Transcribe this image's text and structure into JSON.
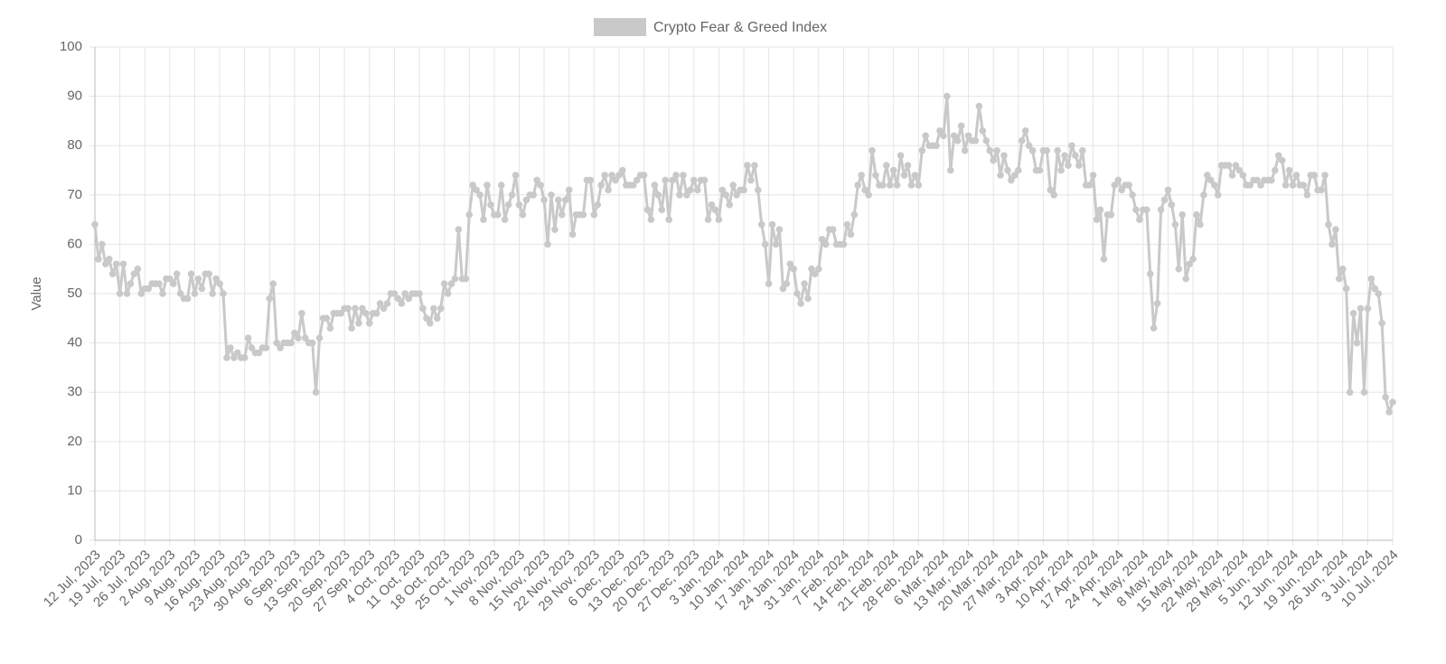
{
  "chart_data": {
    "type": "line",
    "ylabel": "Value",
    "ylim": [
      0,
      100
    ],
    "yticks": [
      0,
      10,
      20,
      30,
      40,
      50,
      60,
      70,
      80,
      90,
      100
    ],
    "grid": true,
    "legend": "top",
    "categories": [
      "12 Jul, 2023",
      null,
      null,
      null,
      null,
      null,
      null,
      "19 Jul, 2023",
      null,
      null,
      null,
      null,
      null,
      null,
      "26 Jul, 2023",
      null,
      null,
      null,
      null,
      null,
      null,
      "2 Aug, 2023",
      null,
      null,
      null,
      null,
      null,
      null,
      "9 Aug, 2023",
      null,
      null,
      null,
      null,
      null,
      null,
      "16 Aug, 2023",
      null,
      null,
      null,
      null,
      null,
      null,
      "23 Aug, 2023",
      null,
      null,
      null,
      null,
      null,
      null,
      "30 Aug, 2023",
      null,
      null,
      null,
      null,
      null,
      null,
      "6 Sep, 2023",
      null,
      null,
      null,
      null,
      null,
      null,
      "13 Sep, 2023",
      null,
      null,
      null,
      null,
      null,
      null,
      "20 Sep, 2023",
      null,
      null,
      null,
      null,
      null,
      null,
      "27 Sep, 2023",
      null,
      null,
      null,
      null,
      null,
      null,
      "4 Oct, 2023",
      null,
      null,
      null,
      null,
      null,
      null,
      "11 Oct, 2023",
      null,
      null,
      null,
      null,
      null,
      null,
      "18 Oct, 2023",
      null,
      null,
      null,
      null,
      null,
      null,
      "25 Oct, 2023",
      null,
      null,
      null,
      null,
      null,
      null,
      "1 Nov, 2023",
      null,
      null,
      null,
      null,
      null,
      null,
      "8 Nov, 2023",
      null,
      null,
      null,
      null,
      null,
      null,
      "15 Nov, 2023",
      null,
      null,
      null,
      null,
      null,
      null,
      "22 Nov, 2023",
      null,
      null,
      null,
      null,
      null,
      null,
      "29 Nov, 2023",
      null,
      null,
      null,
      null,
      null,
      null,
      "6 Dec, 2023",
      null,
      null,
      null,
      null,
      null,
      null,
      "13 Dec, 2023",
      null,
      null,
      null,
      null,
      null,
      null,
      "20 Dec, 2023",
      null,
      null,
      null,
      null,
      null,
      null,
      "27 Dec, 2023",
      null,
      null,
      null,
      null,
      null,
      null,
      "3 Jan, 2024",
      null,
      null,
      null,
      null,
      null,
      null,
      "10 Jan, 2024",
      null,
      null,
      null,
      null,
      null,
      null,
      "17 Jan, 2024",
      null,
      null,
      null,
      null,
      null,
      null,
      "24 Jan, 2024",
      null,
      null,
      null,
      null,
      null,
      null,
      "31 Jan, 2024",
      null,
      null,
      null,
      null,
      null,
      null,
      "7 Feb, 2024",
      null,
      null,
      null,
      null,
      null,
      null,
      "14 Feb, 2024",
      null,
      null,
      null,
      null,
      null,
      null,
      "21 Feb, 2024",
      null,
      null,
      null,
      null,
      null,
      null,
      "28 Feb, 2024",
      null,
      null,
      null,
      null,
      null,
      null,
      "6 Mar, 2024",
      null,
      null,
      null,
      null,
      null,
      null,
      "13 Mar, 2024",
      null,
      null,
      null,
      null,
      null,
      null,
      "20 Mar, 2024",
      null,
      null,
      null,
      null,
      null,
      null,
      "27 Mar, 2024",
      null,
      null,
      null,
      null,
      null,
      null,
      "3 Apr, 2024",
      null,
      null,
      null,
      null,
      null,
      null,
      "10 Apr, 2024",
      null,
      null,
      null,
      null,
      null,
      null,
      "17 Apr, 2024",
      null,
      null,
      null,
      null,
      null,
      null,
      "24 Apr, 2024",
      null,
      null,
      null,
      null,
      null,
      null,
      "1 May, 2024",
      null,
      null,
      null,
      null,
      null,
      null,
      "8 May, 2024",
      null,
      null,
      null,
      null,
      null,
      null,
      "15 May, 2024",
      null,
      null,
      null,
      null,
      null,
      null,
      "22 May, 2024",
      null,
      null,
      null,
      null,
      null,
      null,
      "29 May, 2024",
      null,
      null,
      null,
      null,
      null,
      null,
      "5 Jun, 2024",
      null,
      null,
      null,
      null,
      null,
      null,
      "12 Jun, 2024",
      null,
      null,
      null,
      null,
      null,
      null,
      "19 Jun, 2024",
      null,
      null,
      null,
      null,
      null,
      null,
      "26 Jun, 2024",
      null,
      null,
      null,
      null,
      null,
      null,
      "3 Jul, 2024",
      null,
      null,
      null,
      null,
      null,
      null,
      "10 Jul, 2024"
    ],
    "series": [
      {
        "name": "Crypto Fear & Greed Index",
        "color": "#c9c9c9",
        "values": [
          64,
          57,
          60,
          56,
          57,
          54,
          56,
          50,
          56,
          50,
          52,
          54,
          55,
          50,
          51,
          51,
          52,
          52,
          52,
          50,
          53,
          53,
          52,
          54,
          50,
          49,
          49,
          54,
          50,
          53,
          51,
          54,
          54,
          50,
          53,
          52,
          50,
          37,
          39,
          37,
          38,
          37,
          37,
          41,
          39,
          38,
          38,
          39,
          39,
          49,
          52,
          40,
          39,
          40,
          40,
          40,
          42,
          41,
          46,
          41,
          40,
          40,
          30,
          41,
          45,
          45,
          43,
          46,
          46,
          46,
          47,
          47,
          43,
          47,
          44,
          47,
          46,
          44,
          46,
          46,
          48,
          47,
          48,
          50,
          50,
          49,
          48,
          50,
          49,
          50,
          50,
          50,
          47,
          45,
          44,
          47,
          45,
          47,
          52,
          50,
          52,
          53,
          63,
          53,
          53,
          66,
          72,
          71,
          70,
          65,
          72,
          68,
          66,
          66,
          72,
          65,
          68,
          70,
          74,
          68,
          66,
          69,
          70,
          70,
          73,
          72,
          69,
          60,
          70,
          63,
          69,
          66,
          69,
          71,
          62,
          66,
          66,
          66,
          73,
          73,
          66,
          68,
          72,
          74,
          71,
          74,
          73,
          74,
          75,
          72,
          72,
          72,
          73,
          74,
          74,
          67,
          65,
          72,
          70,
          67,
          73,
          65,
          73,
          74,
          70,
          74,
          70,
          71,
          73,
          71,
          73,
          73,
          65,
          68,
          67,
          65,
          71,
          70,
          68,
          72,
          70,
          71,
          71,
          76,
          73,
          76,
          71,
          64,
          60,
          52,
          64,
          60,
          63,
          51,
          52,
          56,
          55,
          50,
          48,
          52,
          49,
          55,
          54,
          55,
          61,
          60,
          63,
          63,
          60,
          60,
          60,
          64,
          62,
          66,
          72,
          74,
          71,
          70,
          79,
          74,
          72,
          72,
          76,
          72,
          75,
          72,
          78,
          74,
          76,
          72,
          74,
          72,
          79,
          82,
          80,
          80,
          80,
          83,
          82,
          90,
          75,
          82,
          81,
          84,
          79,
          82,
          81,
          81,
          88,
          83,
          81,
          79,
          77,
          79,
          74,
          78,
          75,
          73,
          74,
          75,
          81,
          83,
          80,
          79,
          75,
          75,
          79,
          79,
          71,
          70,
          79,
          75,
          78,
          76,
          80,
          78,
          76,
          79,
          72,
          72,
          74,
          65,
          67,
          57,
          66,
          66,
          72,
          73,
          71,
          72,
          72,
          70,
          67,
          65,
          67,
          67,
          54,
          43,
          48,
          67,
          69,
          71,
          68,
          64,
          55,
          66,
          53,
          56,
          57,
          66,
          64,
          70,
          74,
          73,
          72,
          70,
          76,
          76,
          76,
          74,
          76,
          75,
          74,
          72,
          72,
          73,
          73,
          72,
          73,
          73,
          73,
          75,
          78,
          77,
          72,
          75,
          72,
          74,
          72,
          72,
          70,
          74,
          74,
          71,
          71,
          74,
          64,
          60,
          63,
          53,
          55,
          51,
          30,
          46,
          40,
          47,
          30,
          47,
          53,
          51,
          50,
          44,
          29,
          26,
          28
        ]
      }
    ]
  }
}
